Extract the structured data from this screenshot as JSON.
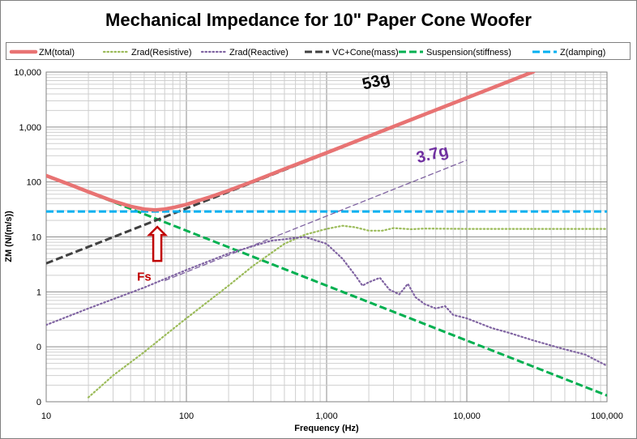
{
  "chart_data": {
    "type": "line",
    "title": "Mechanical Impedance for 10\" Paper Cone Woofer",
    "xlabel": "Frequency (Hz)",
    "ylabel": "ZM (N/(m/s))",
    "x_scale": "log",
    "y_scale": "log",
    "xlim": [
      10,
      100000
    ],
    "ylim": [
      0.01,
      10000
    ],
    "x_ticks": [
      10,
      100,
      1000,
      10000,
      100000
    ],
    "x_tick_labels": [
      "10",
      "100",
      "1,000",
      "10,000",
      "100,000"
    ],
    "y_ticks": [
      0.01,
      0.1,
      1,
      10,
      100,
      1000,
      10000
    ],
    "y_tick_labels": [
      "0",
      "0",
      "1",
      "10",
      "100",
      "1,000",
      "10,000"
    ],
    "grid": true,
    "legend_position": "top",
    "series": [
      {
        "name": "ZM(total)",
        "color": "#e87373",
        "style": "solid-thick",
        "points": [
          [
            10,
            130
          ],
          [
            15,
            88
          ],
          [
            20,
            66
          ],
          [
            30,
            45
          ],
          [
            40,
            36
          ],
          [
            50,
            32
          ],
          [
            60,
            31
          ],
          [
            70,
            32
          ],
          [
            80,
            34
          ],
          [
            100,
            39
          ],
          [
            150,
            54
          ],
          [
            200,
            70
          ],
          [
            300,
            103
          ],
          [
            500,
            172
          ],
          [
            1000,
            340
          ],
          [
            2000,
            680
          ],
          [
            5000,
            1700
          ],
          [
            10000,
            3400
          ],
          [
            20000,
            6800
          ],
          [
            30000,
            10200
          ]
        ]
      },
      {
        "name": "Zrad(Resistive)",
        "color": "#9bbb59",
        "style": "dotted",
        "points": [
          [
            20,
            0.012
          ],
          [
            30,
            0.03
          ],
          [
            50,
            0.08
          ],
          [
            70,
            0.16
          ],
          [
            100,
            0.33
          ],
          [
            200,
            1.3
          ],
          [
            300,
            3
          ],
          [
            500,
            7.5
          ],
          [
            700,
            11
          ],
          [
            1000,
            14
          ],
          [
            1300,
            16
          ],
          [
            1600,
            15
          ],
          [
            2000,
            13
          ],
          [
            2500,
            13
          ],
          [
            3000,
            14.5
          ],
          [
            4000,
            13.8
          ],
          [
            5000,
            14.2
          ],
          [
            10000,
            14
          ],
          [
            100000,
            14
          ]
        ]
      },
      {
        "name": "Zrad(Reactive)",
        "color": "#8064a2",
        "style": "dotted",
        "points": [
          [
            10,
            0.25
          ],
          [
            20,
            0.5
          ],
          [
            50,
            1.2
          ],
          [
            100,
            2.5
          ],
          [
            200,
            5
          ],
          [
            400,
            8.5
          ],
          [
            700,
            10
          ],
          [
            1000,
            7.5
          ],
          [
            1300,
            4
          ],
          [
            1600,
            2
          ],
          [
            1800,
            1.3
          ],
          [
            2000,
            1.5
          ],
          [
            2400,
            1.8
          ],
          [
            2800,
            1.1
          ],
          [
            3300,
            0.9
          ],
          [
            3800,
            1.4
          ],
          [
            4300,
            0.8
          ],
          [
            5000,
            0.6
          ],
          [
            6000,
            0.5
          ],
          [
            7000,
            0.55
          ],
          [
            8000,
            0.38
          ],
          [
            10000,
            0.33
          ],
          [
            15000,
            0.22
          ],
          [
            20000,
            0.18
          ],
          [
            30000,
            0.13
          ],
          [
            50000,
            0.09
          ],
          [
            70000,
            0.072
          ],
          [
            100000,
            0.045
          ]
        ]
      },
      {
        "name": "VC+Cone(mass)",
        "color": "#404040",
        "style": "dashed",
        "points": [
          [
            10,
            3.3
          ],
          [
            30000,
            10000
          ]
        ]
      },
      {
        "name": "Suspension(stiffness)",
        "color": "#00b050",
        "style": "dashed",
        "points": [
          [
            10,
            130
          ],
          [
            100000,
            0.013
          ]
        ]
      },
      {
        "name": "Z(damping)",
        "color": "#00b0f0",
        "style": "dashed",
        "points": [
          [
            10,
            29
          ],
          [
            100000,
            29
          ]
        ]
      },
      {
        "name": "",
        "color": "#8064a2",
        "style": "thin-dashed",
        "legend": false,
        "points": [
          [
            70,
            1.6
          ],
          [
            10000,
            250
          ]
        ]
      }
    ],
    "annotations": [
      {
        "text": "53g",
        "x": 2300,
        "y": 5500,
        "color": "#000000"
      },
      {
        "text": "3.7g",
        "x": 5800,
        "y": 260,
        "color": "#7030a0"
      },
      {
        "text": "Fs",
        "x": 50,
        "y": 1.6,
        "color": "#c00000",
        "arrow_to": [
          62,
          30
        ]
      }
    ]
  }
}
